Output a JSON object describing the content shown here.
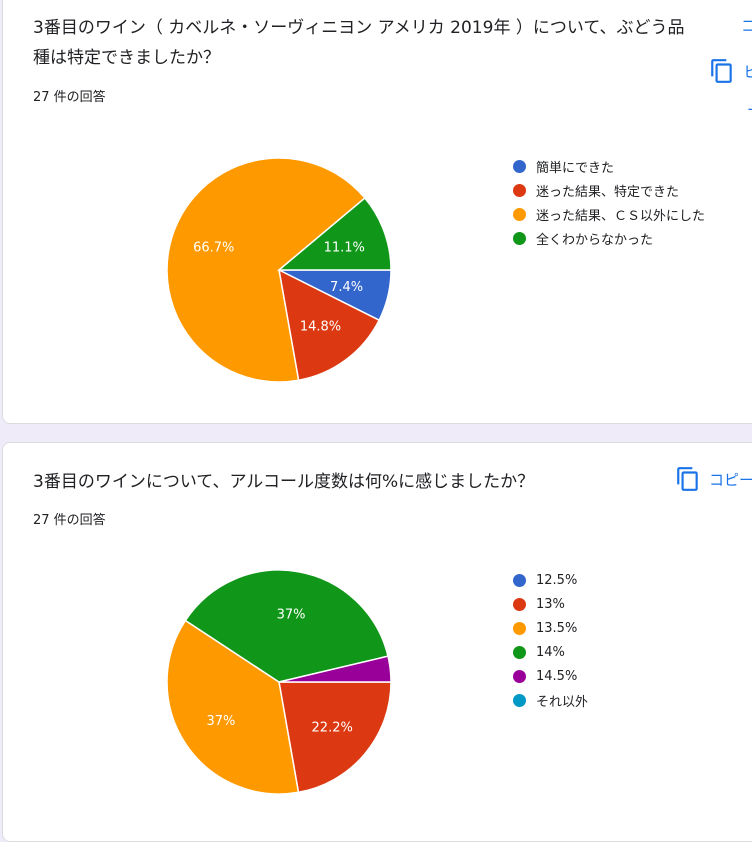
{
  "questions": [
    {
      "title": "3番目のワイン（ カベルネ・ソーヴィニヨン アメリカ 2019年 ）について、ぶどう品種は特定できましたか？",
      "count": "27 件の回答",
      "side_fragment": "コ",
      "copy_label": "ヒ",
      "copy_fragment": "ー"
    },
    {
      "title": "3番目のワインについて、アルコール度数は何%に感じましたか？",
      "count": "27 件の回答",
      "copy_label": "コピー"
    }
  ],
  "chart_data": [
    {
      "type": "pie",
      "categories": [
        "簡単にできた",
        "迷った結果、特定できた",
        "迷った結果、ＣＳ以外にした",
        "全くわからなかった"
      ],
      "values": [
        7.4,
        14.8,
        66.7,
        11.1
      ],
      "value_labels": [
        "7.4%",
        "14.8%",
        "66.7%",
        "11.1%"
      ],
      "colors": [
        "#3366cc",
        "#dc3912",
        "#ff9900",
        "#109618"
      ],
      "legend_position": "right"
    },
    {
      "type": "pie",
      "categories": [
        "12.5%",
        "13%",
        "13.5%",
        "14%",
        "14.5%",
        "それ以外"
      ],
      "values": [
        0,
        22.2,
        37,
        37,
        3.7,
        0
      ],
      "value_labels": [
        "",
        "22.2%",
        "37%",
        "37%",
        "",
        ""
      ],
      "colors": [
        "#3366cc",
        "#dc3912",
        "#ff9900",
        "#109618",
        "#990099",
        "#0099c6"
      ],
      "legend_position": "right"
    }
  ]
}
